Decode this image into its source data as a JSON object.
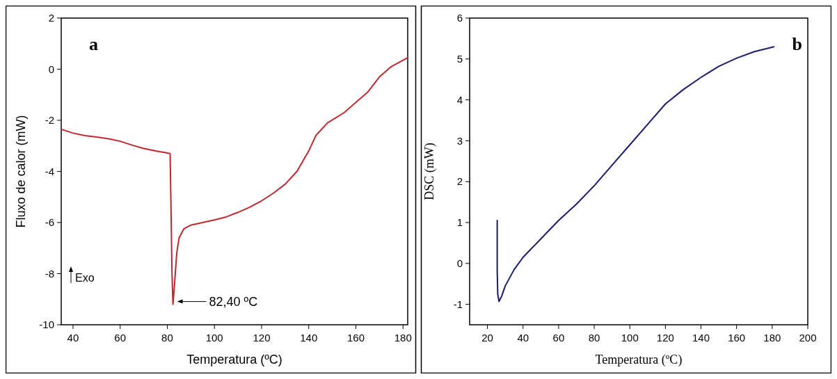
{
  "chart_data": [
    {
      "type": "line",
      "xlabel": "Temperatura (ºC)",
      "ylabel": "Fluxo de calor (mW)",
      "xlim": [
        35,
        182
      ],
      "ylim": [
        -10,
        2
      ],
      "xticks": [
        40,
        60,
        80,
        100,
        120,
        140,
        160,
        180
      ],
      "yticks": [
        -10,
        -8,
        -6,
        -4,
        -2,
        0,
        2
      ],
      "annotations": [
        "a",
        "Exo",
        {
          "text": "82,40 ºC",
          "x": 82.4,
          "y": -9.2
        }
      ],
      "series": [
        {
          "color": "#c0272d",
          "x": [
            35,
            40,
            45,
            50,
            55,
            60,
            65,
            70,
            75,
            80,
            81.2,
            81.5,
            82.0,
            82.4,
            83,
            84,
            85,
            87,
            90,
            95,
            100,
            105,
            110,
            115,
            120,
            125,
            130,
            135,
            140,
            143,
            148,
            155,
            160,
            165,
            170,
            175,
            182
          ],
          "values": [
            -2.35,
            -2.5,
            -2.6,
            -2.65,
            -2.72,
            -2.82,
            -2.97,
            -3.1,
            -3.2,
            -3.28,
            -3.3,
            -5,
            -8,
            -9.2,
            -8.5,
            -7.2,
            -6.6,
            -6.25,
            -6.1,
            -6.0,
            -5.9,
            -5.78,
            -5.6,
            -5.4,
            -5.15,
            -4.85,
            -4.5,
            -4.0,
            -3.2,
            -2.6,
            -2.1,
            -1.7,
            -1.3,
            -0.9,
            -0.3,
            0.1,
            0.45
          ]
        }
      ]
    },
    {
      "type": "line",
      "xlabel": "Temperatura (ºC)",
      "ylabel": "DSC (mW)",
      "xlim": [
        10,
        200
      ],
      "ylim": [
        -1.5,
        6
      ],
      "xticks": [
        20,
        40,
        60,
        80,
        100,
        120,
        140,
        160,
        180,
        200
      ],
      "yticks": [
        -1,
        0,
        1,
        2,
        3,
        4,
        5,
        6
      ],
      "annotations": [
        "b"
      ],
      "series": [
        {
          "color": "#1a1a6e",
          "x": [
            25.5,
            25.5,
            25.8,
            26.5,
            28,
            30,
            35,
            40,
            50,
            60,
            70,
            80,
            90,
            100,
            110,
            120,
            130,
            140,
            150,
            160,
            170,
            181
          ],
          "values": [
            1.05,
            -0.2,
            -0.75,
            -0.93,
            -0.8,
            -0.55,
            -0.15,
            0.15,
            0.6,
            1.05,
            1.45,
            1.9,
            2.4,
            2.9,
            3.4,
            3.9,
            4.25,
            4.55,
            4.82,
            5.02,
            5.18,
            5.3
          ]
        }
      ]
    }
  ]
}
